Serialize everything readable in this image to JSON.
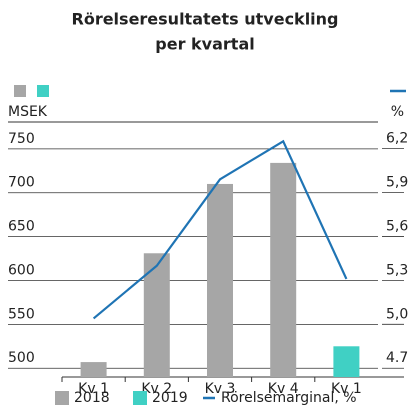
{
  "chart_data": {
    "type": "bar_line",
    "title": [
      "Rörelseresultatets utveckling",
      "per kvartal"
    ],
    "ylabel": "MSEK",
    "y2label": "%",
    "categories": [
      "Kv 1",
      "Kv 2",
      "Kv 3",
      "Kv 4",
      "Kv 1"
    ],
    "series": [
      {
        "name": "2018",
        "type": "bar",
        "color": "#a6a6a6",
        "values": [
          507,
          631,
          710,
          734,
          null
        ]
      },
      {
        "name": "2019",
        "type": "bar",
        "color": "#40d0c4",
        "values": [
          null,
          null,
          null,
          null,
          525
        ]
      },
      {
        "name": "Rörelsemarginal, %",
        "type": "line",
        "axis": "y2",
        "color": "#1f74b4",
        "values": [
          5.04,
          5.4,
          5.99,
          6.25,
          5.31
        ]
      }
    ],
    "ylim": [
      490,
      792
    ],
    "yticks": [
      500,
      550,
      600,
      650,
      700,
      750
    ],
    "y2lim": [
      4.64,
      6.45
    ],
    "y2ticks": [
      4.7,
      {
        "value": 5,
        "label": "5,0"
      },
      {
        "value": 5.3,
        "label": "5,3"
      },
      {
        "value": 5.6,
        "label": "5,6"
      },
      {
        "value": 5.9,
        "label": "5,9"
      },
      {
        "value": 6.2,
        "label": "6,2"
      }
    ],
    "grid": true
  }
}
